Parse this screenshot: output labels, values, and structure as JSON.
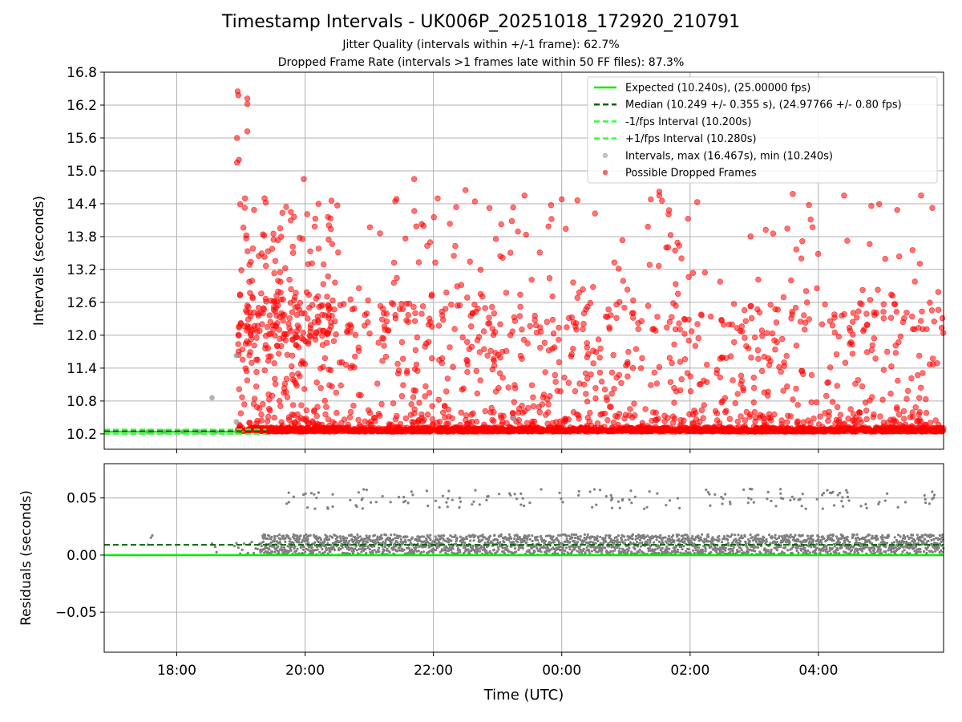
{
  "chart_data": {
    "type": "scatter",
    "title": "Timestamp Intervals - UK006P_20251018_172920_210791",
    "subtitle_lines": [
      "Jitter Quality (intervals within +/-1 frame): 62.7%",
      "Dropped Frame Rate (intervals >1 frames late within 50 FF files): 87.3%"
    ],
    "xlabel": "Time (UTC)",
    "x_ticks": [
      "18:00",
      "20:00",
      "22:00",
      "00:00",
      "02:00",
      "04:00"
    ],
    "x_range_hours": [
      16.87,
      29.95
    ],
    "panels": [
      {
        "name": "intervals",
        "ylabel": "Intervals (seconds)",
        "ylim": [
          9.92,
          16.8
        ],
        "y_ticks": [
          "10.2",
          "10.8",
          "11.4",
          "12.0",
          "12.6",
          "13.2",
          "13.8",
          "14.4",
          "15.0",
          "15.6",
          "16.2",
          "16.8"
        ],
        "grid": true,
        "legend": {
          "placement": "upper right",
          "entries": [
            {
              "label": "Expected (10.240s), (25.00000 fps)",
              "style": "solid",
              "color": "#00ee00"
            },
            {
              "label": "Median (10.249 +/- 0.355 s), (24.97766 +/- 0.80 fps)",
              "style": "dashed",
              "color": "#006400"
            },
            {
              "label": "-1/fps Interval (10.200s)",
              "style": "dashed",
              "color": "#33ff33"
            },
            {
              "label": "+1/fps Interval (10.280s)",
              "style": "dashed",
              "color": "#33ff33"
            },
            {
              "label": "Intervals, max (16.467s), min (10.240s)",
              "style": "marker",
              "color": "#999999"
            },
            {
              "label": "Possible Dropped Frames",
              "style": "marker",
              "color": "#ff0000"
            }
          ]
        },
        "reference_lines": {
          "expected": 10.24,
          "median": 10.249,
          "minus_1fps": 10.2,
          "plus_1fps": 10.28
        },
        "gray_points": [
          {
            "t": 17.55,
            "v": 10.24
          },
          {
            "t": 17.8,
            "v": 10.24
          },
          {
            "t": 18.1,
            "v": 10.24
          },
          {
            "t": 18.35,
            "v": 10.24
          },
          {
            "t": 18.55,
            "v": 10.86
          },
          {
            "t": 18.6,
            "v": 10.24
          },
          {
            "t": 18.93,
            "v": 11.63
          },
          {
            "t": 18.93,
            "v": 10.42
          },
          {
            "t": 23.25,
            "v": 10.48
          },
          {
            "t": 17.6,
            "v": 10.25
          }
        ],
        "red_notable_points": [
          {
            "t": 18.95,
            "v": 16.45
          },
          {
            "t": 18.96,
            "v": 16.38
          },
          {
            "t": 19.1,
            "v": 16.32
          },
          {
            "t": 19.1,
            "v": 16.22
          },
          {
            "t": 18.94,
            "v": 15.6
          },
          {
            "t": 19.1,
            "v": 15.72
          },
          {
            "t": 18.94,
            "v": 15.15
          },
          {
            "t": 18.97,
            "v": 15.2
          },
          {
            "t": 19.98,
            "v": 14.85
          },
          {
            "t": 21.7,
            "v": 14.85
          },
          {
            "t": 22.5,
            "v": 14.65
          },
          {
            "t": 23.42,
            "v": 14.55
          },
          {
            "t": 24.0,
            "v": 14.48
          },
          {
            "t": 25.52,
            "v": 14.62
          },
          {
            "t": 25.52,
            "v": 14.55
          },
          {
            "t": 27.6,
            "v": 14.58
          },
          {
            "t": 28.4,
            "v": 14.55
          },
          {
            "t": 29.6,
            "v": 14.55
          }
        ],
        "series_summary": "About 2,000 red points (possible dropped frames) spread from about 19:00 to 05:50 UTC, mostly 10.24–12.6 s, dense band at 10.24–10.5 s, scattered up to 16.47 s"
      },
      {
        "name": "residuals",
        "ylabel": "Residuals (seconds)",
        "ylim": [
          -0.085,
          0.08
        ],
        "y_ticks": [
          "−0.05",
          "0.00",
          "0.05"
        ],
        "grid": true,
        "reference_lines": {
          "expected": 0.0,
          "median": 0.009
        },
        "series_summary": "Gray residual points mostly 0.0–0.018 s, a sparse upper group near 0.040–0.058 s"
      }
    ],
    "colors": {
      "red": "#ff0000",
      "gray": "#808080",
      "expected": "#00ee00",
      "median": "#006400",
      "grid": "#b0b0b0"
    }
  }
}
